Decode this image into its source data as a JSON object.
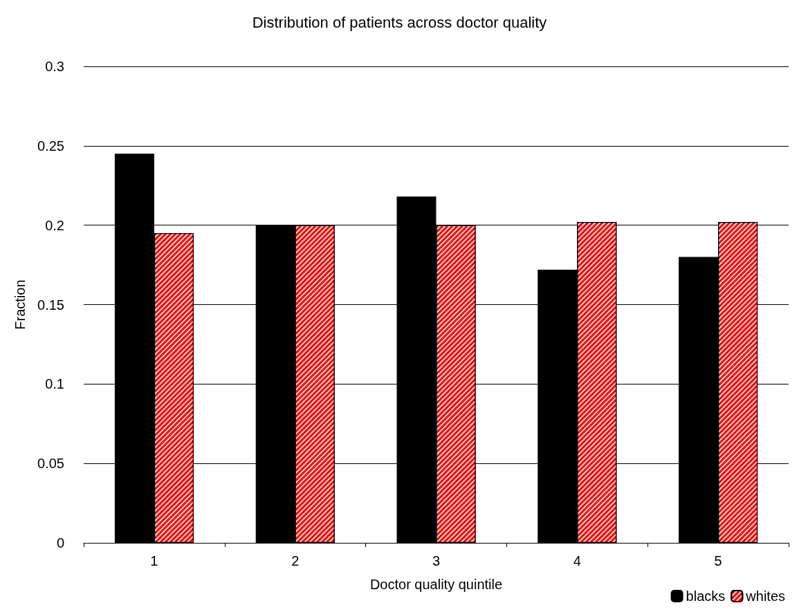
{
  "chart_data": {
    "type": "bar",
    "title": "Distribution of patients across doctor quality",
    "xlabel": "Doctor quality quintile",
    "ylabel": "Fraction",
    "categories": [
      "1",
      "2",
      "3",
      "4",
      "5"
    ],
    "series": [
      {
        "name": "blacks",
        "color": "#000000",
        "values": [
          0.245,
          0.2,
          0.218,
          0.172,
          0.18
        ]
      },
      {
        "name": "whites",
        "color": "#ff0000",
        "values": [
          0.195,
          0.2,
          0.2,
          0.202,
          0.202
        ]
      }
    ],
    "ylim": [
      0,
      0.3
    ],
    "yticks": [
      0,
      0.05,
      0.1,
      0.15,
      0.2,
      0.25,
      0.3
    ],
    "grid": "y",
    "legend": "bottom right"
  }
}
